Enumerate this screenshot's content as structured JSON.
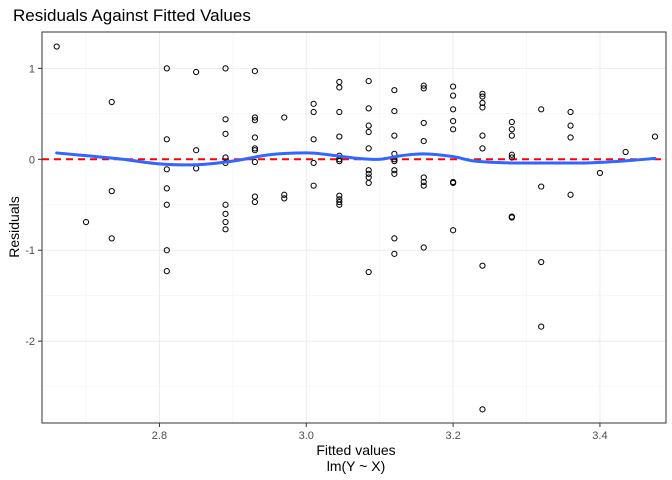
{
  "chart_data": {
    "type": "scatter",
    "title": "Residuals Against Fitted Values",
    "xlabel": "Fitted values",
    "xlabel_sub": "lm(Y ~ X)",
    "ylabel": "Residuals",
    "xlim": [
      2.64,
      3.49
    ],
    "ylim": [
      -2.9,
      1.4
    ],
    "x_ticks": [
      2.8,
      3.0,
      3.2,
      3.4
    ],
    "x_tick_labels": [
      "2.8",
      "3.0",
      "3.2",
      "3.4"
    ],
    "y_ticks": [
      -2,
      -1,
      0,
      1
    ],
    "y_tick_labels": [
      "-2",
      "-1",
      "0",
      "1"
    ],
    "grid": true,
    "reference_line": {
      "y": 0,
      "color": "#ff0000",
      "style": "dashed"
    },
    "smooth_color": "#3366ff",
    "smooth": [
      [
        2.66,
        0.07
      ],
      [
        2.7,
        0.04
      ],
      [
        2.75,
        0.0
      ],
      [
        2.8,
        -0.05
      ],
      [
        2.85,
        -0.06
      ],
      [
        2.9,
        -0.02
      ],
      [
        2.95,
        0.05
      ],
      [
        3.0,
        0.07
      ],
      [
        3.03,
        0.05
      ],
      [
        3.07,
        0.01
      ],
      [
        3.1,
        0.0
      ],
      [
        3.13,
        0.04
      ],
      [
        3.16,
        0.06
      ],
      [
        3.2,
        0.03
      ],
      [
        3.23,
        -0.02
      ],
      [
        3.28,
        -0.04
      ],
      [
        3.33,
        -0.04
      ],
      [
        3.38,
        -0.04
      ],
      [
        3.43,
        -0.02
      ],
      [
        3.475,
        0.01
      ]
    ],
    "points": [
      [
        2.66,
        1.24
      ],
      [
        2.7,
        -0.69
      ],
      [
        2.735,
        0.63
      ],
      [
        2.735,
        -0.35
      ],
      [
        2.735,
        -0.87
      ],
      [
        2.81,
        1.0
      ],
      [
        2.81,
        0.22
      ],
      [
        2.81,
        -0.11
      ],
      [
        2.81,
        -0.32
      ],
      [
        2.81,
        -0.5
      ],
      [
        2.81,
        -1.0
      ],
      [
        2.81,
        -1.23
      ],
      [
        2.85,
        0.96
      ],
      [
        2.85,
        0.1
      ],
      [
        2.85,
        -0.1
      ],
      [
        2.89,
        1.0
      ],
      [
        2.89,
        0.44
      ],
      [
        2.89,
        0.28
      ],
      [
        2.89,
        0.02
      ],
      [
        2.89,
        -0.04
      ],
      [
        2.89,
        -0.5
      ],
      [
        2.89,
        -0.6
      ],
      [
        2.89,
        -0.69
      ],
      [
        2.89,
        -0.77
      ],
      [
        2.93,
        0.97
      ],
      [
        2.93,
        0.46
      ],
      [
        2.93,
        0.43
      ],
      [
        2.93,
        0.24
      ],
      [
        2.93,
        0.12
      ],
      [
        2.93,
        0.1
      ],
      [
        2.93,
        -0.03
      ],
      [
        2.93,
        -0.41
      ],
      [
        2.93,
        -0.47
      ],
      [
        2.97,
        0.46
      ],
      [
        2.97,
        -0.39
      ],
      [
        2.97,
        -0.43
      ],
      [
        3.01,
        0.61
      ],
      [
        3.01,
        0.52
      ],
      [
        3.01,
        0.22
      ],
      [
        3.01,
        -0.04
      ],
      [
        3.01,
        -0.29
      ],
      [
        3.045,
        0.85
      ],
      [
        3.045,
        0.79
      ],
      [
        3.045,
        0.52
      ],
      [
        3.045,
        0.25
      ],
      [
        3.045,
        0.04
      ],
      [
        3.045,
        0.0
      ],
      [
        3.045,
        -0.02
      ],
      [
        3.045,
        -0.4
      ],
      [
        3.045,
        -0.44
      ],
      [
        3.045,
        -0.47
      ],
      [
        3.045,
        -0.5
      ],
      [
        3.085,
        0.86
      ],
      [
        3.085,
        0.56
      ],
      [
        3.085,
        0.37
      ],
      [
        3.085,
        0.3
      ],
      [
        3.085,
        0.12
      ],
      [
        3.085,
        -0.12
      ],
      [
        3.085,
        -0.16
      ],
      [
        3.085,
        -0.2
      ],
      [
        3.085,
        -0.26
      ],
      [
        3.085,
        -1.24
      ],
      [
        3.12,
        0.76
      ],
      [
        3.12,
        0.53
      ],
      [
        3.12,
        0.26
      ],
      [
        3.12,
        0.06
      ],
      [
        3.12,
        0.0
      ],
      [
        3.12,
        -0.02
      ],
      [
        3.12,
        -0.12
      ],
      [
        3.12,
        -0.16
      ],
      [
        3.12,
        -0.87
      ],
      [
        3.12,
        -1.04
      ],
      [
        3.16,
        0.81
      ],
      [
        3.16,
        0.78
      ],
      [
        3.16,
        0.4
      ],
      [
        3.16,
        0.2
      ],
      [
        3.16,
        -0.2
      ],
      [
        3.16,
        -0.25
      ],
      [
        3.16,
        -0.29
      ],
      [
        3.16,
        -0.97
      ],
      [
        3.2,
        0.8
      ],
      [
        3.2,
        0.7
      ],
      [
        3.2,
        0.55
      ],
      [
        3.2,
        0.42
      ],
      [
        3.2,
        0.33
      ],
      [
        3.2,
        -0.25
      ],
      [
        3.2,
        -0.26
      ],
      [
        3.2,
        -0.78
      ],
      [
        3.24,
        0.72
      ],
      [
        3.24,
        0.69
      ],
      [
        3.24,
        0.62
      ],
      [
        3.24,
        0.57
      ],
      [
        3.24,
        0.26
      ],
      [
        3.24,
        0.12
      ],
      [
        3.24,
        -1.17
      ],
      [
        3.24,
        -2.75
      ],
      [
        3.28,
        0.41
      ],
      [
        3.28,
        0.33
      ],
      [
        3.28,
        0.26
      ],
      [
        3.28,
        0.05
      ],
      [
        3.28,
        0.02
      ],
      [
        3.28,
        -0.63
      ],
      [
        3.28,
        -0.64
      ],
      [
        3.32,
        0.55
      ],
      [
        3.32,
        -0.3
      ],
      [
        3.32,
        -1.13
      ],
      [
        3.32,
        -1.84
      ],
      [
        3.36,
        0.52
      ],
      [
        3.36,
        0.37
      ],
      [
        3.36,
        0.24
      ],
      [
        3.36,
        -0.39
      ],
      [
        3.4,
        -0.15
      ],
      [
        3.435,
        0.08
      ],
      [
        3.475,
        0.25
      ]
    ]
  }
}
